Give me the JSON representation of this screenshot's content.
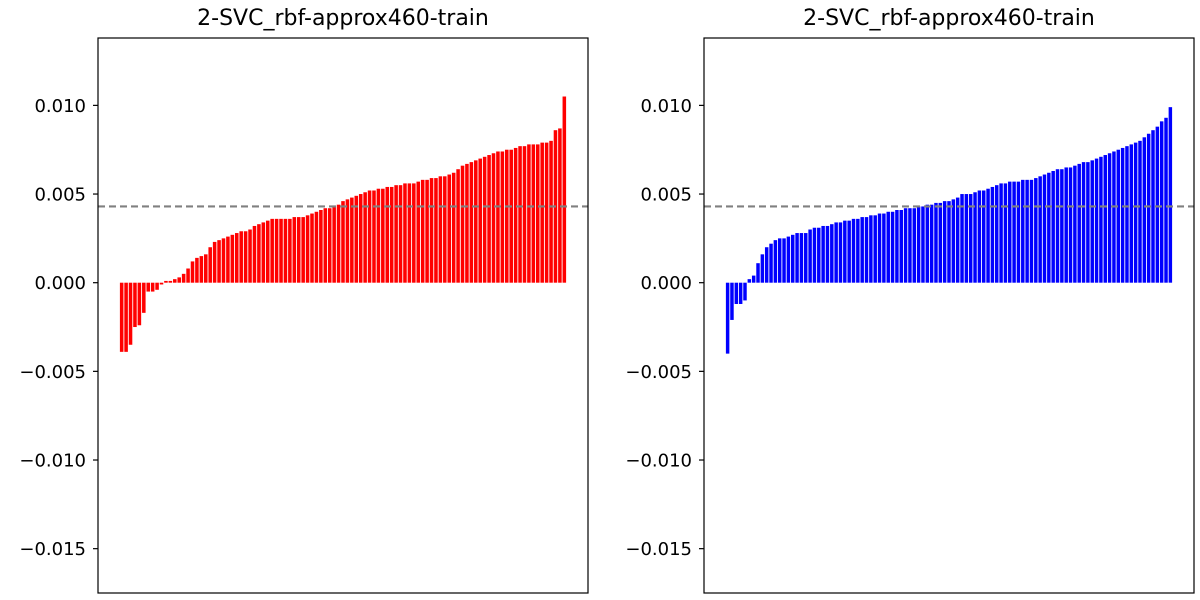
{
  "chart_data": [
    {
      "type": "bar",
      "title": "2-SVC_rbf-approx460-train",
      "color": "#ff0000",
      "ylim": [
        -0.0175,
        0.0138
      ],
      "yticks": [
        {
          "value": 0.01,
          "label": "0.010"
        },
        {
          "value": 0.005,
          "label": "0.005"
        },
        {
          "value": 0.0,
          "label": "0.000"
        },
        {
          "value": -0.005,
          "label": "−0.005"
        },
        {
          "value": -0.01,
          "label": "−0.010"
        },
        {
          "value": -0.015,
          "label": "−0.015"
        }
      ],
      "reference_line": {
        "value": 0.0043,
        "style": "dashed",
        "color": "#808080"
      },
      "grid": false,
      "values": [
        -0.0039,
        -0.0039,
        -0.0035,
        -0.0025,
        -0.0024,
        -0.0017,
        -0.0005,
        -0.0005,
        -0.0004,
        -0.0001,
        0.0001,
        0.0001,
        0.0002,
        0.0003,
        0.0005,
        0.0008,
        0.0012,
        0.0014,
        0.0015,
        0.0016,
        0.002,
        0.0023,
        0.0024,
        0.0025,
        0.0026,
        0.0027,
        0.0028,
        0.0029,
        0.0029,
        0.003,
        0.0032,
        0.0033,
        0.0034,
        0.0035,
        0.0036,
        0.0036,
        0.0036,
        0.0036,
        0.0036,
        0.0037,
        0.0037,
        0.0037,
        0.0038,
        0.0039,
        0.004,
        0.0041,
        0.0042,
        0.0042,
        0.0043,
        0.0044,
        0.0046,
        0.0047,
        0.0048,
        0.0049,
        0.005,
        0.0051,
        0.0052,
        0.0052,
        0.0053,
        0.0053,
        0.0054,
        0.0054,
        0.0055,
        0.0055,
        0.0056,
        0.0056,
        0.0056,
        0.0057,
        0.0058,
        0.0058,
        0.0059,
        0.0059,
        0.006,
        0.006,
        0.0061,
        0.0062,
        0.0064,
        0.0066,
        0.0067,
        0.0068,
        0.0069,
        0.007,
        0.0071,
        0.0072,
        0.0073,
        0.0074,
        0.0074,
        0.0075,
        0.0075,
        0.0076,
        0.0077,
        0.0077,
        0.0078,
        0.0078,
        0.0078,
        0.0079,
        0.0079,
        0.008,
        0.0086,
        0.0087,
        0.0105
      ]
    },
    {
      "type": "bar",
      "title": "2-SVC_rbf-approx460-train",
      "color": "#0000ff",
      "ylim": [
        -0.0175,
        0.0138
      ],
      "yticks": [
        {
          "value": 0.01,
          "label": "0.010"
        },
        {
          "value": 0.005,
          "label": "0.005"
        },
        {
          "value": 0.0,
          "label": "0.000"
        },
        {
          "value": -0.005,
          "label": "−0.005"
        },
        {
          "value": -0.01,
          "label": "−0.010"
        },
        {
          "value": -0.015,
          "label": "−0.015"
        }
      ],
      "reference_line": {
        "value": 0.0043,
        "style": "dashed",
        "color": "#808080"
      },
      "grid": false,
      "values": [
        -0.004,
        -0.0021,
        -0.0012,
        -0.0012,
        -0.001,
        0.0002,
        0.0004,
        0.0011,
        0.0016,
        0.002,
        0.0022,
        0.0024,
        0.0025,
        0.0025,
        0.0026,
        0.0027,
        0.0028,
        0.0028,
        0.0028,
        0.003,
        0.0031,
        0.0031,
        0.0032,
        0.0032,
        0.0033,
        0.0034,
        0.0034,
        0.0035,
        0.0035,
        0.0036,
        0.0036,
        0.0037,
        0.0037,
        0.0038,
        0.0038,
        0.0039,
        0.0039,
        0.004,
        0.004,
        0.0041,
        0.0041,
        0.0042,
        0.0042,
        0.0042,
        0.0043,
        0.0043,
        0.0044,
        0.0044,
        0.0045,
        0.0045,
        0.0046,
        0.0046,
        0.0047,
        0.0048,
        0.005,
        0.005,
        0.005,
        0.0051,
        0.0052,
        0.0052,
        0.0053,
        0.0054,
        0.0055,
        0.0056,
        0.0056,
        0.0057,
        0.0057,
        0.0057,
        0.0058,
        0.0058,
        0.0058,
        0.0059,
        0.006,
        0.0061,
        0.0062,
        0.0063,
        0.0064,
        0.0064,
        0.0065,
        0.0065,
        0.0066,
        0.0067,
        0.0068,
        0.0068,
        0.0069,
        0.007,
        0.0071,
        0.0072,
        0.0073,
        0.0074,
        0.0075,
        0.0076,
        0.0077,
        0.0078,
        0.0079,
        0.008,
        0.0082,
        0.0084,
        0.0086,
        0.0088,
        0.0091,
        0.0093,
        0.0099
      ]
    }
  ]
}
